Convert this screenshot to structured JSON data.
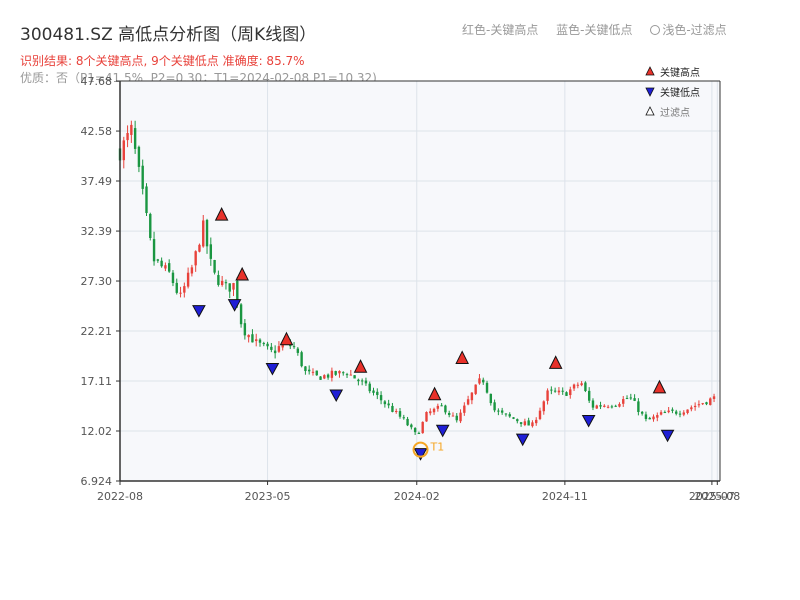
{
  "title": "300481.SZ 高低点分析图（周K线图）",
  "subtitle": "识别结果: 8个关键高点, 9个关键低点  准确度: 85.7%",
  "quality": "优质：否（P1=41.5%, P2=0.30；T1=2024-02-08 P1=10.32)",
  "top_legend": {
    "red": "红色-关键高点",
    "blue": "蓝色-关键低点",
    "light": "浅色-过滤点"
  },
  "colors": {
    "up": "#e8423b",
    "down": "#1a9641",
    "high_marker": "#e8312a",
    "low_marker": "#1f1fd6",
    "t1": "#f5a623",
    "plot_bg": "#f7f8fb",
    "grid": "#dde3ea"
  },
  "chart_data": {
    "type": "candlestick",
    "title": "300481.SZ 高低点分析图（周K线图）",
    "yticks": [
      "6.924",
      "12.02",
      "17.11",
      "22.21",
      "27.30",
      "32.39",
      "37.49",
      "42.58",
      "47.68"
    ],
    "ylim": [
      6.924,
      47.68
    ],
    "xlim": [
      "2022-08-01",
      "2025-08-15"
    ],
    "xticks": [
      {
        "date": "2022-08-01",
        "label": "2022-08"
      },
      {
        "date": "2023-05-01",
        "label": "2023-05"
      },
      {
        "date": "2024-02-01",
        "label": "2024-02"
      },
      {
        "date": "2024-11-01",
        "label": "2024-11"
      },
      {
        "date": "2025-07-31",
        "label": "2025-07"
      },
      {
        "date": "2025-08-10",
        "label": "2025-08"
      }
    ],
    "legend": {
      "placement": "top-right",
      "entries": [
        {
          "name": "关键高点",
          "marker": "triangle-up",
          "color": "#e8312a"
        },
        {
          "name": "关键低点",
          "marker": "triangle-down",
          "color": "#1f1fd6"
        },
        {
          "name": "过滤点",
          "marker": "triangle-up-outline",
          "color": "#ffffff"
        }
      ]
    },
    "grid": true,
    "anchors": [
      [
        "2022-08-01",
        40.5
      ],
      [
        "2022-08-22",
        42.6
      ],
      [
        "2022-09-12",
        36.0
      ],
      [
        "2022-10-01",
        29.5
      ],
      [
        "2022-11-01",
        28.0
      ],
      [
        "2022-11-20",
        25.5
      ],
      [
        "2022-12-15",
        29.0
      ],
      [
        "2023-01-01",
        33.0
      ],
      [
        "2023-01-20",
        28.0
      ],
      [
        "2023-02-15",
        26.5
      ],
      [
        "2023-03-01",
        27.0
      ],
      [
        "2023-03-15",
        22.5
      ],
      [
        "2023-04-10",
        21.0
      ],
      [
        "2023-05-10",
        20.0
      ],
      [
        "2023-06-01",
        21.0
      ],
      [
        "2023-06-20",
        20.5
      ],
      [
        "2023-07-10",
        18.0
      ],
      [
        "2023-08-01",
        17.5
      ],
      [
        "2023-09-01",
        17.8
      ],
      [
        "2023-09-25",
        18.0
      ],
      [
        "2023-10-20",
        17.0
      ],
      [
        "2023-12-01",
        15.0
      ],
      [
        "2024-01-10",
        13.0
      ],
      [
        "2024-02-01",
        11.5
      ],
      [
        "2024-02-20",
        13.8
      ],
      [
        "2024-03-20",
        14.5
      ],
      [
        "2024-04-15",
        13.0
      ],
      [
        "2024-05-10",
        15.5
      ],
      [
        "2024-06-01",
        17.5
      ],
      [
        "2024-06-25",
        14.0
      ],
      [
        "2024-08-01",
        13.2
      ],
      [
        "2024-09-01",
        12.5
      ],
      [
        "2024-10-01",
        16.0
      ],
      [
        "2024-11-01",
        15.8
      ],
      [
        "2024-12-01",
        17.0
      ],
      [
        "2024-12-20",
        14.5
      ],
      [
        "2025-02-01",
        14.8
      ],
      [
        "2025-03-01",
        15.5
      ],
      [
        "2025-04-01",
        13.0
      ],
      [
        "2025-05-01",
        13.8
      ],
      [
        "2025-06-01",
        14.0
      ],
      [
        "2025-08-10",
        15.5
      ]
    ],
    "key_highs": [
      {
        "date": "2023-02-05",
        "value": 33.4
      },
      {
        "date": "2023-03-15",
        "value": 27.3
      },
      {
        "date": "2023-06-05",
        "value": 20.7
      },
      {
        "date": "2023-10-20",
        "value": 17.9
      },
      {
        "date": "2024-03-05",
        "value": 15.1
      },
      {
        "date": "2024-04-25",
        "value": 18.8
      },
      {
        "date": "2024-10-15",
        "value": 18.3
      },
      {
        "date": "2025-04-25",
        "value": 15.8
      }
    ],
    "key_lows": [
      {
        "date": "2022-12-25",
        "value": 24.9
      },
      {
        "date": "2023-03-01",
        "value": 25.5
      },
      {
        "date": "2023-05-10",
        "value": 19.0
      },
      {
        "date": "2023-09-05",
        "value": 16.3
      },
      {
        "date": "2024-02-08",
        "value": 10.32
      },
      {
        "date": "2024-03-20",
        "value": 12.7
      },
      {
        "date": "2024-08-15",
        "value": 11.8
      },
      {
        "date": "2024-12-15",
        "value": 13.7
      },
      {
        "date": "2025-05-10",
        "value": 12.2
      }
    ],
    "t1_marker": {
      "date": "2024-02-08",
      "value": 10.32,
      "label": "T1"
    }
  }
}
